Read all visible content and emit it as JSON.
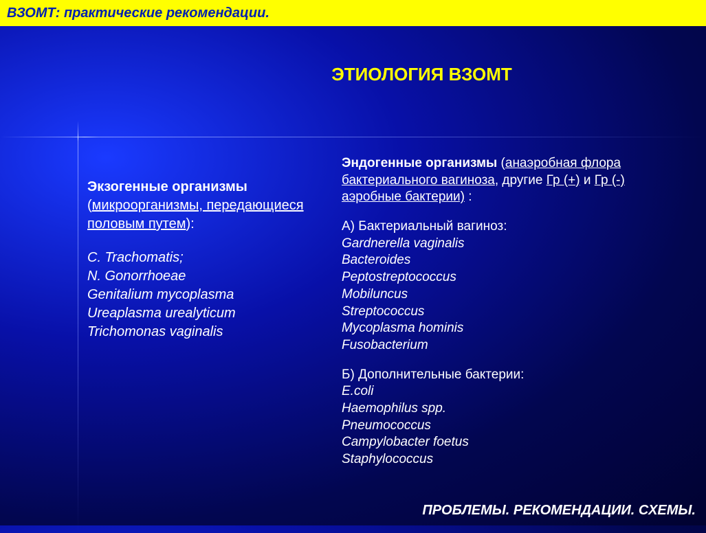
{
  "header": {
    "text": "ВЗОМТ: практические рекомендации."
  },
  "title": "ЭТИОЛОГИЯ ВЗОМТ",
  "left": {
    "heading_bold": "Экзогенные организмы",
    "heading_paren_open": " (",
    "heading_underline": "микроорганизмы, передающиеся половым путем",
    "heading_close": "):",
    "items": [
      "C. Trachomatis;",
      "N. Gonorrhoeae",
      "Genitalium mycoplasma",
      "Ureaplasma urealyticum",
      "Trichomonas vaginalis"
    ]
  },
  "right": {
    "heading_bold": "Эндогенные организмы",
    "heading_paren_open": " (",
    "heading_underline1": "анаэробная флора бактериального вагиноза",
    "heading_mid": ", другие ",
    "heading_underline2": "Гр (+)",
    "heading_mid2": " и ",
    "heading_underline3": "Гр (-)",
    "heading_underline4": " аэробные бактерии)",
    "heading_close": " :",
    "section_a": "А) Бактериальный вагиноз:",
    "items_a": [
      "Gardnerella vaginalis",
      "Bacteroides",
      "Peptostreptococcus",
      "Mobiluncus",
      "Streptococcus",
      "Mycoplasma hominis",
      "Fusobacterium"
    ],
    "section_b": "Б) Дополнительные бактерии:",
    "items_b": [
      "E.coli",
      "Haemophilus spp.",
      "Pneumococcus",
      "Campylobacter foetus",
      "Staphylococcus"
    ]
  },
  "footer": {
    "text": "ПРОБЛЕМЫ. РЕКОМЕНДАЦИИ. СХЕМЫ."
  },
  "colors": {
    "yellow": "#ffff00",
    "blue_deep": "#020650",
    "blue_bright": "#1a3aff",
    "white": "#ffffff",
    "header_text": "#0020b0"
  }
}
